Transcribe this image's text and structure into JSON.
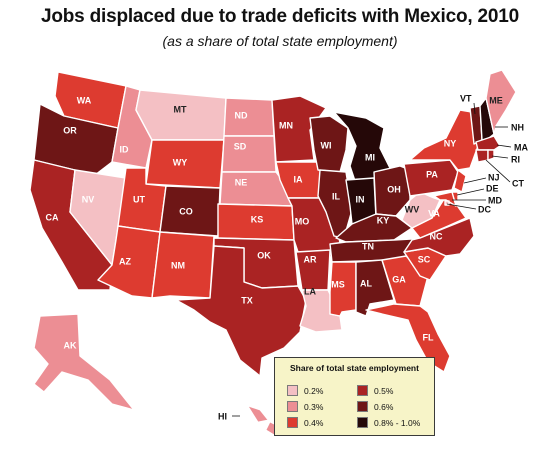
{
  "title": "Jobs displaced due to trade deficits with Mexico, 2010",
  "subtitle": "(as a share of total state employment)",
  "legend": {
    "title": "Share of total state employment",
    "items": [
      {
        "label": "0.2%",
        "color": "#f4c0c4"
      },
      {
        "label": "0.3%",
        "color": "#ec8e94"
      },
      {
        "label": "0.4%",
        "color": "#dd3b30"
      },
      {
        "label": "0.5%",
        "color": "#aa2323"
      },
      {
        "label": "0.6%",
        "color": "#6e1616"
      },
      {
        "label": "0.8% - 1.0%",
        "color": "#250808"
      }
    ]
  },
  "states": {
    "WA": {
      "label": "WA",
      "share": "0.4%"
    },
    "OR": {
      "label": "OR",
      "share": "0.6%"
    },
    "CA": {
      "label": "CA",
      "share": "0.5%"
    },
    "ID": {
      "label": "ID",
      "share": "0.3%"
    },
    "NV": {
      "label": "NV",
      "share": "0.2%"
    },
    "MT": {
      "label": "MT",
      "share": "0.2%"
    },
    "WY": {
      "label": "WY",
      "share": "0.4%"
    },
    "UT": {
      "label": "UT",
      "share": "0.4%"
    },
    "AZ": {
      "label": "AZ",
      "share": "0.4%"
    },
    "CO": {
      "label": "CO",
      "share": "0.6%"
    },
    "NM": {
      "label": "NM",
      "share": "0.4%"
    },
    "ND": {
      "label": "ND",
      "share": "0.3%"
    },
    "SD": {
      "label": "SD",
      "share": "0.3%"
    },
    "NE": {
      "label": "NE",
      "share": "0.3%"
    },
    "KS": {
      "label": "KS",
      "share": "0.4%"
    },
    "OK": {
      "label": "OK",
      "share": "0.5%"
    },
    "TX": {
      "label": "TX",
      "share": "0.5%"
    },
    "MN": {
      "label": "MN",
      "share": "0.5%"
    },
    "IA": {
      "label": "IA",
      "share": "0.4%"
    },
    "MO": {
      "label": "MO",
      "share": "0.5%"
    },
    "AR": {
      "label": "AR",
      "share": "0.5%"
    },
    "LA": {
      "label": "LA",
      "share": "0.2%"
    },
    "WI": {
      "label": "WI",
      "share": "0.6%"
    },
    "IL": {
      "label": "IL",
      "share": "0.6%"
    },
    "MI": {
      "label": "MI",
      "share": "0.8% - 1.0%"
    },
    "IN": {
      "label": "IN",
      "share": "0.8% - 1.0%"
    },
    "OH": {
      "label": "OH",
      "share": "0.6%"
    },
    "KY": {
      "label": "KY",
      "share": "0.6%"
    },
    "TN": {
      "label": "TN",
      "share": "0.6%"
    },
    "MS": {
      "label": "MS",
      "share": "0.4%"
    },
    "AL": {
      "label": "AL",
      "share": "0.6%"
    },
    "GA": {
      "label": "GA",
      "share": "0.4%"
    },
    "FL": {
      "label": "FL",
      "share": "0.4%"
    },
    "SC": {
      "label": "SC",
      "share": "0.4%"
    },
    "NC": {
      "label": "NC",
      "share": "0.5%"
    },
    "VA": {
      "label": "VA",
      "share": "0.4%"
    },
    "WV": {
      "label": "WV",
      "share": "0.2%"
    },
    "PA": {
      "label": "PA",
      "share": "0.5%"
    },
    "NY": {
      "label": "NY",
      "share": "0.4%"
    },
    "VT": {
      "label": "VT",
      "share": "0.6%"
    },
    "NH": {
      "label": "NH",
      "share": "0.8% - 1.0%"
    },
    "ME": {
      "label": "ME",
      "share": "0.3%"
    },
    "MA": {
      "label": "MA",
      "share": "0.5%"
    },
    "RI": {
      "label": "RI",
      "share": "0.5%"
    },
    "CT": {
      "label": "CT",
      "share": "0.5%"
    },
    "NJ": {
      "label": "NJ",
      "share": "0.4%"
    },
    "DE": {
      "label": "DE",
      "share": "0.4%"
    },
    "MD": {
      "label": "MD",
      "share": "0.4%"
    },
    "DC": {
      "label": "DC",
      "share": "0.2%"
    },
    "AK": {
      "label": "AK",
      "share": "0.3%"
    },
    "HI": {
      "label": "HI",
      "share": "0.3%"
    }
  }
}
